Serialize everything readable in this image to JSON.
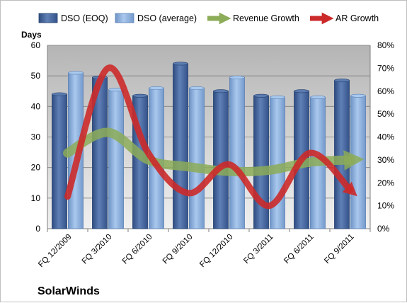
{
  "chart_data": {
    "type": "bar",
    "title": "",
    "company": "SolarWinds",
    "ylabel_left": "Days",
    "ylim_left": [
      0,
      60
    ],
    "yticks_left": [
      "0",
      "10",
      "20",
      "30",
      "40",
      "50",
      "60"
    ],
    "ylim_right": [
      0,
      0.8
    ],
    "yticks_right": [
      "0%",
      "10%",
      "20%",
      "30%",
      "40%",
      "50%",
      "60%",
      "70%",
      "80%"
    ],
    "categories": [
      "FQ 12/2009",
      "FQ 3/2010",
      "FQ 6/2010",
      "FQ 9/2010",
      "FQ 12/2010",
      "FQ 3/2011",
      "FQ 6/2011",
      "FQ 9/2011"
    ],
    "legend_position": "top",
    "grid": true,
    "series": [
      {
        "name": "DSO (EOQ)",
        "kind": "bar",
        "axis": "left",
        "color": "#4a6aa0",
        "values": [
          44,
          49.5,
          43.5,
          54,
          45,
          43.5,
          45,
          48.5
        ]
      },
      {
        "name": "DSO (average)",
        "kind": "bar",
        "axis": "left",
        "color": "#8db4e2",
        "values": [
          51,
          45.5,
          46,
          46,
          49.5,
          43,
          43,
          43.5
        ]
      },
      {
        "name": "Revenue Growth",
        "kind": "line",
        "axis": "right",
        "color": "#8cac58",
        "values": [
          0.33,
          0.42,
          0.3,
          0.27,
          0.25,
          0.255,
          0.29,
          0.3
        ]
      },
      {
        "name": "AR Growth",
        "kind": "line",
        "axis": "right",
        "color": "#cc2a2a",
        "values": [
          0.14,
          0.7,
          0.33,
          0.155,
          0.28,
          0.1,
          0.33,
          0.17
        ]
      }
    ]
  }
}
